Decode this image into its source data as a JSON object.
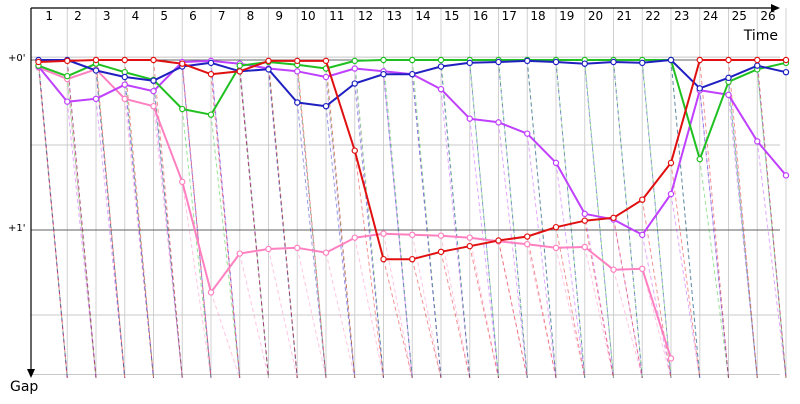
{
  "chart_data": {
    "type": "line",
    "title": "",
    "x_axis_label": "Time",
    "y_axis_label": "Gap",
    "laps": [
      1,
      2,
      3,
      4,
      5,
      6,
      7,
      8,
      9,
      10,
      11,
      12,
      13,
      14,
      15,
      16,
      17,
      18,
      19,
      20,
      21,
      22,
      23,
      24,
      25,
      26
    ],
    "gap_ticks": [
      {
        "label": "+0'",
        "value": 0
      },
      {
        "label": "+1'",
        "value": 60
      }
    ],
    "gap_range": [
      -1,
      111
    ],
    "grid": {
      "minor_gap_lines": [
        -1,
        30,
        90,
        111
      ],
      "major_gap_lines": [
        0,
        60
      ]
    },
    "series": [
      {
        "color": "#ff80c0",
        "points": [
          [
            0.0,
            2.6
          ],
          [
            1.0,
            6.7
          ],
          [
            2.0,
            3.3
          ],
          [
            3.0,
            13.7
          ],
          [
            4.0,
            16.3
          ],
          [
            5.0,
            43.0
          ],
          [
            6.0,
            82.0
          ],
          [
            7.0,
            68.3
          ],
          [
            8.0,
            66.7
          ],
          [
            9.0,
            66.3
          ],
          [
            10.0,
            68.0
          ],
          [
            11.0,
            62.7
          ],
          [
            12.0,
            61.3
          ],
          [
            13.0,
            61.7
          ],
          [
            14.0,
            62.0
          ],
          [
            15.0,
            62.7
          ],
          [
            16.0,
            64.0
          ],
          [
            17.0,
            65.0
          ],
          [
            18.0,
            66.3
          ],
          [
            19.0,
            66.0
          ],
          [
            20.0,
            74.0
          ],
          [
            21.0,
            73.7
          ],
          [
            22.0,
            105.3
          ]
        ]
      },
      {
        "color": "#c040ff",
        "points": [
          [
            0.0,
            2.3
          ],
          [
            1.0,
            14.7
          ],
          [
            2.0,
            13.7
          ],
          [
            3.0,
            8.7
          ],
          [
            4.0,
            11.0
          ],
          [
            5.0,
            0.7
          ],
          [
            6.0,
            0.3
          ],
          [
            7.0,
            1.3
          ],
          [
            8.0,
            3.0
          ],
          [
            9.0,
            4.0
          ],
          [
            10.0,
            6.0
          ],
          [
            11.0,
            3.0
          ],
          [
            12.0,
            4.0
          ],
          [
            13.0,
            5.0
          ],
          [
            14.0,
            10.3
          ],
          [
            15.0,
            20.7
          ],
          [
            16.0,
            22.0
          ],
          [
            17.0,
            26.0
          ],
          [
            18.0,
            36.3
          ],
          [
            19.0,
            54.3
          ],
          [
            20.0,
            56.3
          ],
          [
            21.0,
            61.7
          ],
          [
            22.0,
            47.3
          ],
          [
            23.0,
            10.7
          ],
          [
            24.0,
            12.3
          ],
          [
            25.0,
            28.7
          ],
          [
            26.0,
            40.7
          ]
        ]
      },
      {
        "color": "#20c020",
        "points": [
          [
            0.0,
            2.0
          ],
          [
            1.0,
            5.7
          ],
          [
            2.0,
            1.3
          ],
          [
            3.0,
            4.3
          ],
          [
            4.0,
            7.0
          ],
          [
            5.0,
            17.3
          ],
          [
            6.0,
            19.3
          ],
          [
            7.0,
            2.0
          ],
          [
            8.0,
            0.7
          ],
          [
            9.0,
            1.7
          ],
          [
            10.0,
            3.0
          ],
          [
            11.0,
            0.3
          ],
          [
            12.0,
            0.0
          ],
          [
            13.0,
            0.0
          ],
          [
            14.0,
            0.0
          ],
          [
            15.0,
            0.0
          ],
          [
            16.0,
            0.0
          ],
          [
            17.0,
            0.0
          ],
          [
            18.0,
            0.0
          ],
          [
            19.0,
            0.0
          ],
          [
            20.0,
            0.0
          ],
          [
            21.0,
            0.0
          ],
          [
            22.0,
            0.0
          ],
          [
            23.0,
            35.0
          ],
          [
            24.0,
            7.7
          ],
          [
            25.0,
            3.3
          ],
          [
            26.0,
            1.0
          ]
        ]
      },
      {
        "color": "#2020c0",
        "points": [
          [
            0.0,
            0.0
          ],
          [
            1.0,
            0.0
          ],
          [
            2.0,
            3.7
          ],
          [
            3.0,
            6.0
          ],
          [
            4.0,
            7.3
          ],
          [
            5.0,
            2.3
          ],
          [
            6.0,
            1.0
          ],
          [
            7.0,
            4.0
          ],
          [
            8.0,
            3.3
          ],
          [
            9.0,
            15.0
          ],
          [
            10.0,
            16.3
          ],
          [
            11.0,
            8.3
          ],
          [
            12.0,
            5.0
          ],
          [
            13.0,
            5.0
          ],
          [
            14.0,
            2.3
          ],
          [
            15.0,
            1.0
          ],
          [
            16.0,
            0.7
          ],
          [
            17.0,
            0.3
          ],
          [
            18.0,
            0.7
          ],
          [
            19.0,
            1.3
          ],
          [
            20.0,
            0.7
          ],
          [
            21.0,
            1.0
          ],
          [
            22.0,
            0.0
          ],
          [
            23.0,
            10.0
          ],
          [
            24.0,
            6.3
          ],
          [
            25.0,
            2.0
          ],
          [
            26.0,
            4.3
          ]
        ]
      },
      {
        "color": "#e01010",
        "points": [
          [
            0.0,
            0.7
          ],
          [
            1.0,
            0.3
          ],
          [
            2.0,
            0.0
          ],
          [
            3.0,
            0.0
          ],
          [
            4.0,
            0.0
          ],
          [
            5.0,
            1.3
          ],
          [
            6.0,
            5.0
          ],
          [
            7.0,
            4.0
          ],
          [
            8.0,
            0.3
          ],
          [
            9.0,
            0.3
          ],
          [
            10.0,
            0.3
          ],
          [
            11.0,
            32.0
          ],
          [
            12.0,
            70.3
          ],
          [
            13.0,
            70.3
          ],
          [
            14.0,
            67.7
          ],
          [
            15.0,
            65.7
          ],
          [
            16.0,
            63.7
          ],
          [
            17.0,
            62.3
          ],
          [
            18.0,
            59.0
          ],
          [
            19.0,
            56.7
          ],
          [
            20.0,
            55.7
          ],
          [
            21.0,
            49.3
          ],
          [
            22.0,
            36.3
          ],
          [
            23.0,
            0.0
          ],
          [
            24.0,
            0.0
          ],
          [
            25.0,
            0.0
          ],
          [
            26.0,
            0.0
          ]
        ]
      }
    ]
  }
}
